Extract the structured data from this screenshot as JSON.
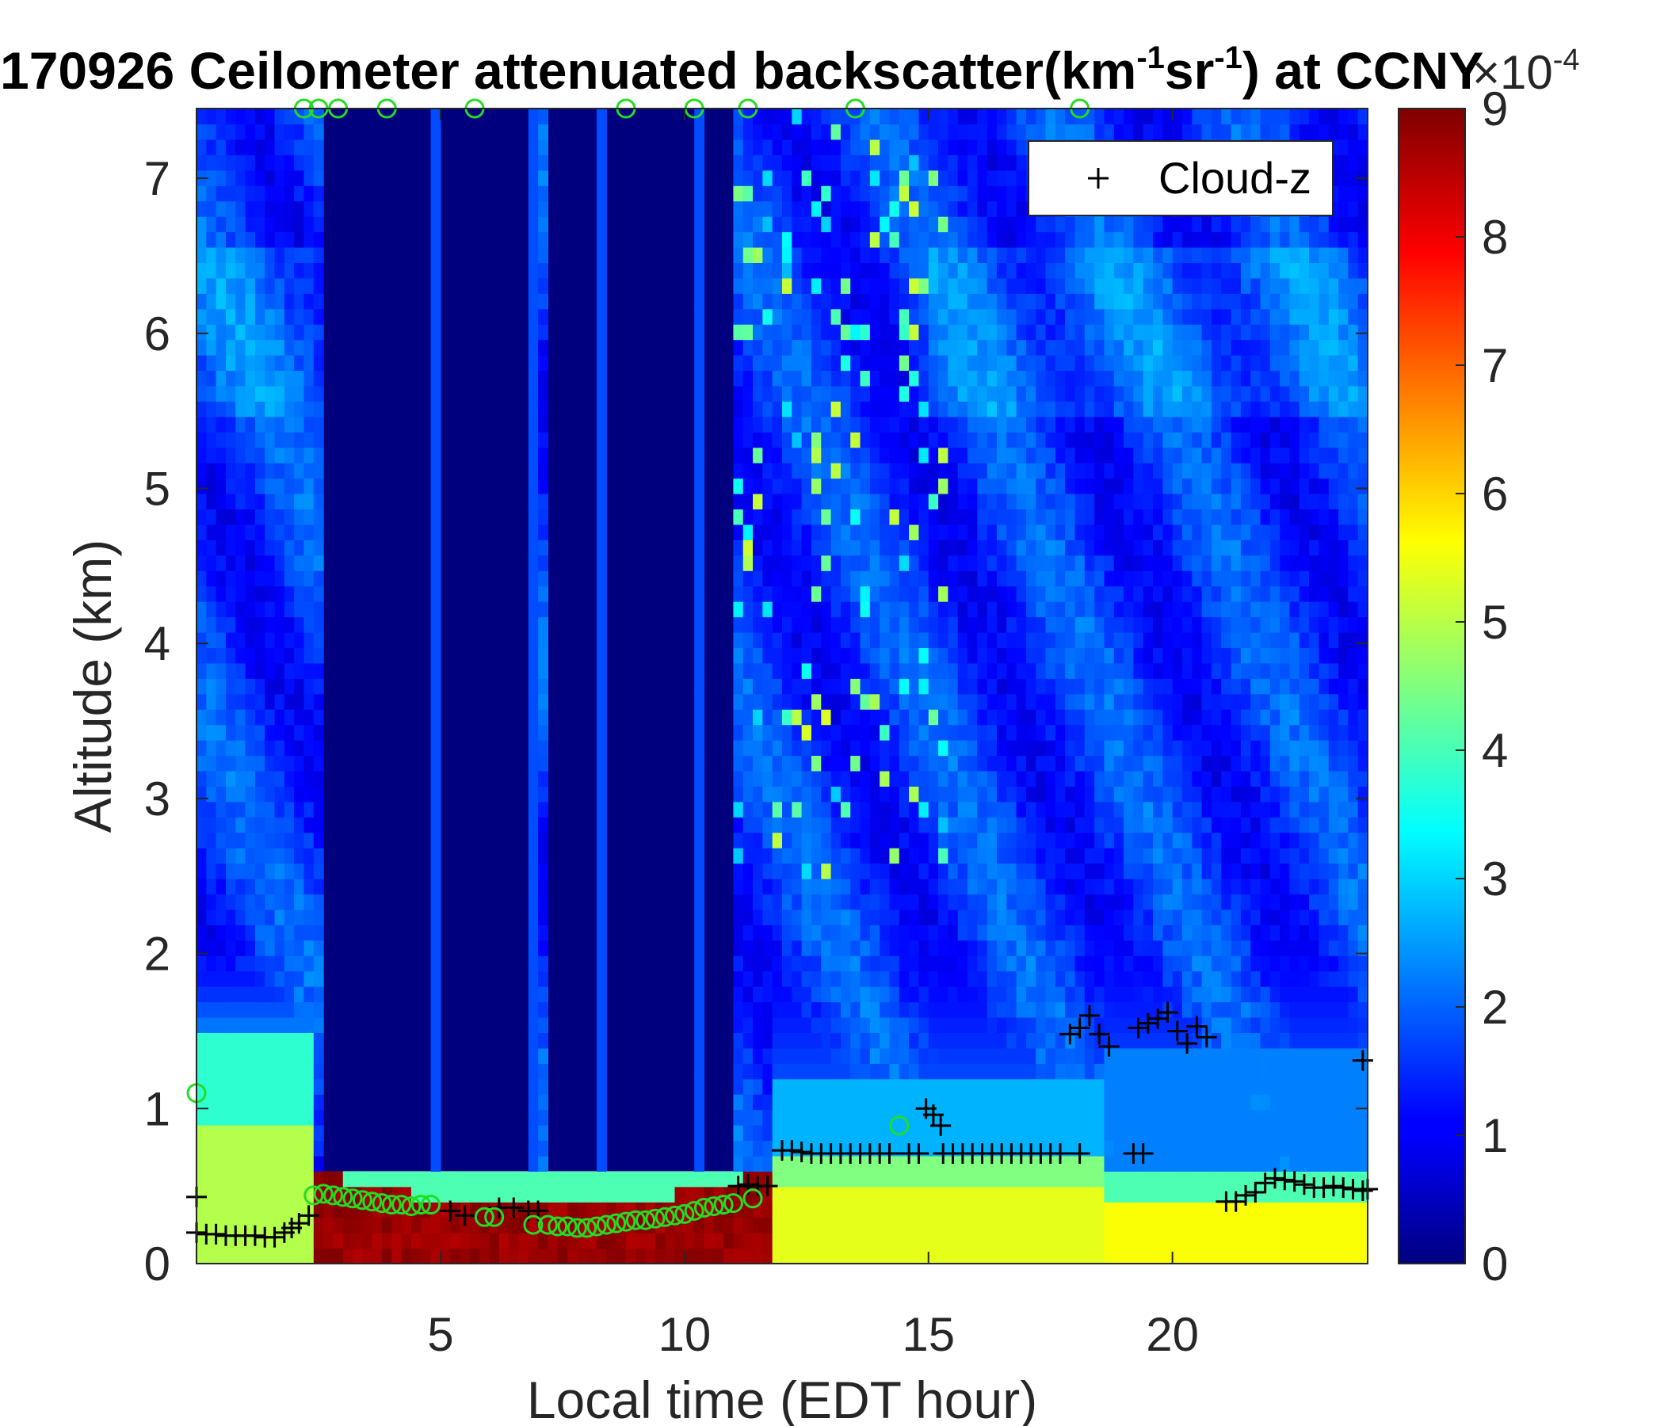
{
  "chart_data": {
    "type": "heatmap",
    "title": {
      "prefix": "170926 Ceilometer attenuated backscatter(km",
      "sup1": "-1",
      "mid": "sr",
      "sup2": "-1",
      "suffix": ") at CCNY"
    },
    "xlabel": "Local time (EDT hour)",
    "ylabel": "Altitude (km)",
    "xlim": [
      0,
      24
    ],
    "ylim": [
      0,
      7.45
    ],
    "xticks": [
      5,
      10,
      15,
      20
    ],
    "yticks": [
      0,
      1,
      2,
      3,
      4,
      5,
      6,
      7
    ],
    "colorbar": {
      "colormap": "jet",
      "range": [
        0,
        9
      ],
      "ticks": [
        0,
        1,
        2,
        3,
        4,
        5,
        6,
        7,
        8,
        9
      ],
      "exponent_base": "×10",
      "exponent_power": "-4"
    },
    "legend": {
      "entries": [
        {
          "marker": "+",
          "label": "Cloud-z"
        }
      ],
      "position": "top-right"
    },
    "colors": {
      "cloud_marker": "#000000",
      "pbl_marker": "#22dd22",
      "background": "#00007f"
    },
    "series": [
      {
        "name": "Cloud-z",
        "marker": "+",
        "points": [
          [
            0.0,
            0.2
          ],
          [
            0.2,
            0.19
          ],
          [
            0.4,
            0.19
          ],
          [
            0.6,
            0.18
          ],
          [
            0.8,
            0.18
          ],
          [
            1.0,
            0.18
          ],
          [
            1.2,
            0.18
          ],
          [
            1.4,
            0.17
          ],
          [
            1.6,
            0.17
          ],
          [
            1.8,
            0.2
          ],
          [
            1.95,
            0.23
          ],
          [
            2.1,
            0.26
          ],
          [
            2.3,
            0.31
          ],
          [
            5.2,
            0.34
          ],
          [
            5.5,
            0.31
          ],
          [
            6.2,
            0.36
          ],
          [
            6.5,
            0.36
          ],
          [
            6.8,
            0.34
          ],
          [
            7.0,
            0.34
          ],
          [
            11.1,
            0.5
          ],
          [
            11.3,
            0.51
          ],
          [
            11.5,
            0.5
          ],
          [
            11.7,
            0.5
          ],
          [
            12.0,
            0.73
          ],
          [
            12.2,
            0.73
          ],
          [
            12.4,
            0.72
          ],
          [
            12.6,
            0.71
          ],
          [
            12.8,
            0.71
          ],
          [
            13.0,
            0.71
          ],
          [
            13.2,
            0.71
          ],
          [
            13.4,
            0.71
          ],
          [
            13.6,
            0.71
          ],
          [
            13.8,
            0.71
          ],
          [
            14.0,
            0.71
          ],
          [
            14.2,
            0.71
          ],
          [
            14.6,
            0.71
          ],
          [
            14.8,
            0.71
          ],
          [
            15.3,
            0.71
          ],
          [
            15.5,
            0.71
          ],
          [
            15.7,
            0.71
          ],
          [
            15.9,
            0.71
          ],
          [
            16.1,
            0.71
          ],
          [
            16.3,
            0.71
          ],
          [
            16.5,
            0.71
          ],
          [
            16.7,
            0.71
          ],
          [
            16.9,
            0.71
          ],
          [
            17.1,
            0.71
          ],
          [
            17.3,
            0.71
          ],
          [
            17.5,
            0.71
          ],
          [
            17.7,
            0.71
          ],
          [
            18.1,
            0.71
          ],
          [
            14.95,
            1.0
          ],
          [
            15.1,
            0.96
          ],
          [
            15.25,
            0.89
          ],
          [
            17.9,
            1.48
          ],
          [
            18.1,
            1.52
          ],
          [
            18.3,
            1.6
          ],
          [
            18.5,
            1.48
          ],
          [
            18.7,
            1.4
          ],
          [
            19.3,
            1.52
          ],
          [
            19.5,
            1.55
          ],
          [
            19.7,
            1.58
          ],
          [
            19.9,
            1.62
          ],
          [
            20.1,
            1.5
          ],
          [
            20.3,
            1.42
          ],
          [
            20.5,
            1.53
          ],
          [
            20.7,
            1.46
          ],
          [
            19.2,
            0.71
          ],
          [
            19.4,
            0.71
          ],
          [
            21.1,
            0.4
          ],
          [
            21.3,
            0.4
          ],
          [
            21.5,
            0.44
          ],
          [
            21.7,
            0.46
          ],
          [
            21.9,
            0.52
          ],
          [
            22.1,
            0.55
          ],
          [
            22.3,
            0.54
          ],
          [
            22.5,
            0.53
          ],
          [
            22.7,
            0.51
          ],
          [
            22.9,
            0.49
          ],
          [
            23.1,
            0.49
          ],
          [
            23.3,
            0.5
          ],
          [
            23.5,
            0.49
          ],
          [
            23.7,
            0.48
          ],
          [
            23.9,
            0.47
          ],
          [
            24.0,
            0.48
          ],
          [
            23.9,
            1.31
          ],
          [
            0.0,
            0.43
          ]
        ]
      },
      {
        "name": "",
        "marker": "o",
        "points": [
          [
            0.0,
            1.1
          ],
          [
            2.4,
            0.44
          ],
          [
            2.6,
            0.45
          ],
          [
            2.8,
            0.44
          ],
          [
            3.0,
            0.43
          ],
          [
            3.2,
            0.42
          ],
          [
            3.4,
            0.41
          ],
          [
            3.6,
            0.4
          ],
          [
            3.8,
            0.39
          ],
          [
            4.0,
            0.38
          ],
          [
            4.2,
            0.38
          ],
          [
            4.4,
            0.37
          ],
          [
            4.6,
            0.38
          ],
          [
            4.8,
            0.38
          ],
          [
            5.9,
            0.3
          ],
          [
            6.1,
            0.3
          ],
          [
            6.9,
            0.25
          ],
          [
            7.2,
            0.25
          ],
          [
            7.4,
            0.24
          ],
          [
            7.6,
            0.24
          ],
          [
            7.8,
            0.23
          ],
          [
            8.0,
            0.23
          ],
          [
            8.2,
            0.24
          ],
          [
            8.4,
            0.25
          ],
          [
            8.6,
            0.26
          ],
          [
            8.8,
            0.27
          ],
          [
            9.0,
            0.28
          ],
          [
            9.2,
            0.28
          ],
          [
            9.4,
            0.29
          ],
          [
            9.6,
            0.3
          ],
          [
            9.8,
            0.31
          ],
          [
            10.0,
            0.32
          ],
          [
            10.2,
            0.34
          ],
          [
            10.4,
            0.36
          ],
          [
            10.6,
            0.37
          ],
          [
            10.8,
            0.38
          ],
          [
            11.0,
            0.39
          ],
          [
            11.4,
            0.42
          ],
          [
            14.4,
            0.89
          ],
          [
            2.2,
            7.45
          ],
          [
            2.5,
            7.45
          ],
          [
            2.9,
            7.45
          ],
          [
            3.9,
            7.45
          ],
          [
            5.7,
            7.45
          ],
          [
            8.8,
            7.45
          ],
          [
            10.2,
            7.45
          ],
          [
            11.3,
            7.45
          ],
          [
            13.5,
            7.45
          ],
          [
            18.1,
            7.45
          ]
        ]
      }
    ]
  }
}
